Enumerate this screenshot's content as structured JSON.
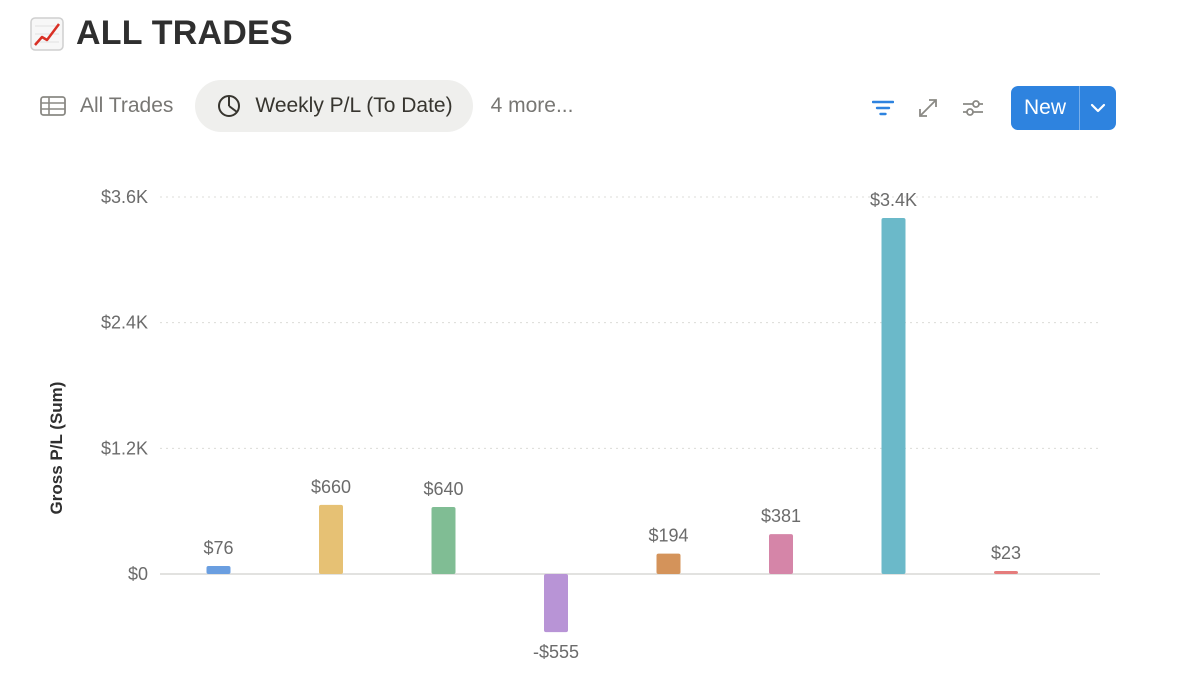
{
  "header": {
    "title": "ALL TRADES",
    "icon": "chart-increasing-icon"
  },
  "tabs": [
    {
      "label": "All Trades",
      "icon": "table-icon",
      "active": false
    },
    {
      "label": "Weekly P/L (To Date)",
      "icon": "pie-chart-icon",
      "active": true
    }
  ],
  "more_label": "4 more...",
  "toolbar": {
    "new_label": "New",
    "accent": "#2e83df"
  },
  "chart_data": {
    "type": "bar",
    "ylabel": "Gross P/L (Sum)",
    "xlabel": "",
    "ylim": [
      -720,
      3720
    ],
    "yticks": [
      {
        "value": 0,
        "label": "$0"
      },
      {
        "value": 1200,
        "label": "$1.2K"
      },
      {
        "value": 2400,
        "label": "$2.4K"
      },
      {
        "value": 3600,
        "label": "$3.6K"
      }
    ],
    "grid": true,
    "bars": [
      {
        "value": 76,
        "label": "$76",
        "color": "#6a9ee0"
      },
      {
        "value": 660,
        "label": "$660",
        "color": "#e6c174"
      },
      {
        "value": 640,
        "label": "$640",
        "color": "#80bd94"
      },
      {
        "value": -555,
        "label": "-$555",
        "color": "#b894d6"
      },
      {
        "value": 194,
        "label": "$194",
        "color": "#d4935a"
      },
      {
        "value": 381,
        "label": "$381",
        "color": "#d585a8"
      },
      {
        "value": 3400,
        "label": "$3.4K",
        "color": "#6bb9c9"
      },
      {
        "value": 23,
        "label": "$23",
        "color": "#e57c7c"
      }
    ]
  }
}
